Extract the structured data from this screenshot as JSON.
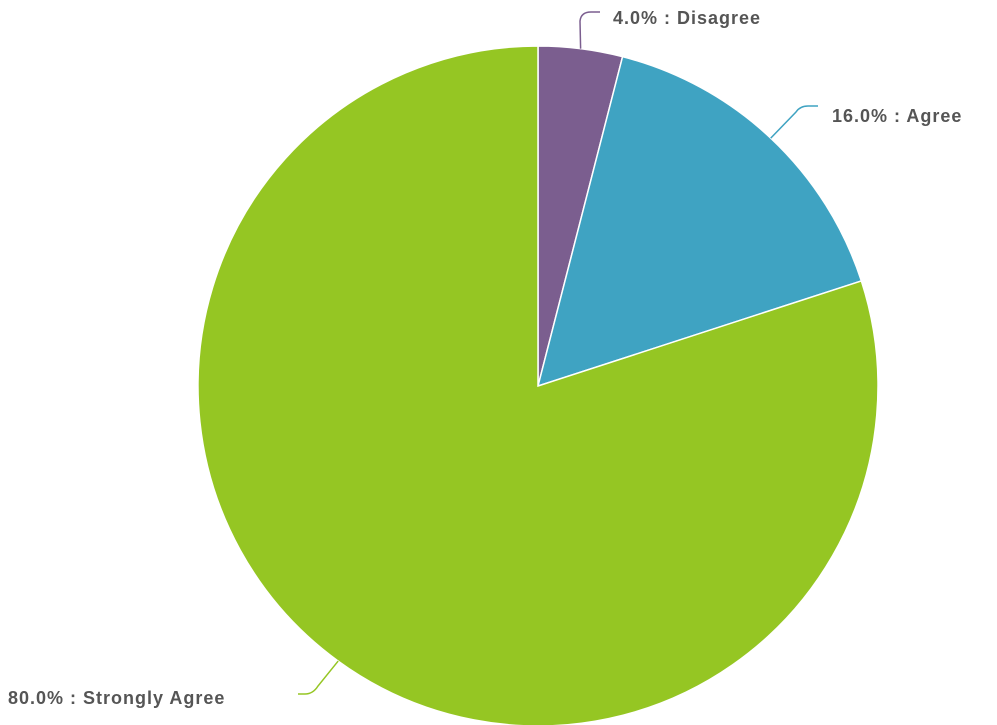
{
  "chart_data": {
    "type": "pie",
    "slices": [
      {
        "label": "Disagree",
        "value": 4.0,
        "display": "4.0% : Disagree",
        "color": "#7B5E8F"
      },
      {
        "label": "Agree",
        "value": 16.0,
        "display": "16.0% : Agree",
        "color": "#3FA3C2"
      },
      {
        "label": "Strongly Agree",
        "value": 80.0,
        "display": "80.0% : Strongly Agree",
        "color": "#95C623"
      }
    ],
    "start_angle": "12 o'clock",
    "direction": "clockwise",
    "legend": "none"
  }
}
